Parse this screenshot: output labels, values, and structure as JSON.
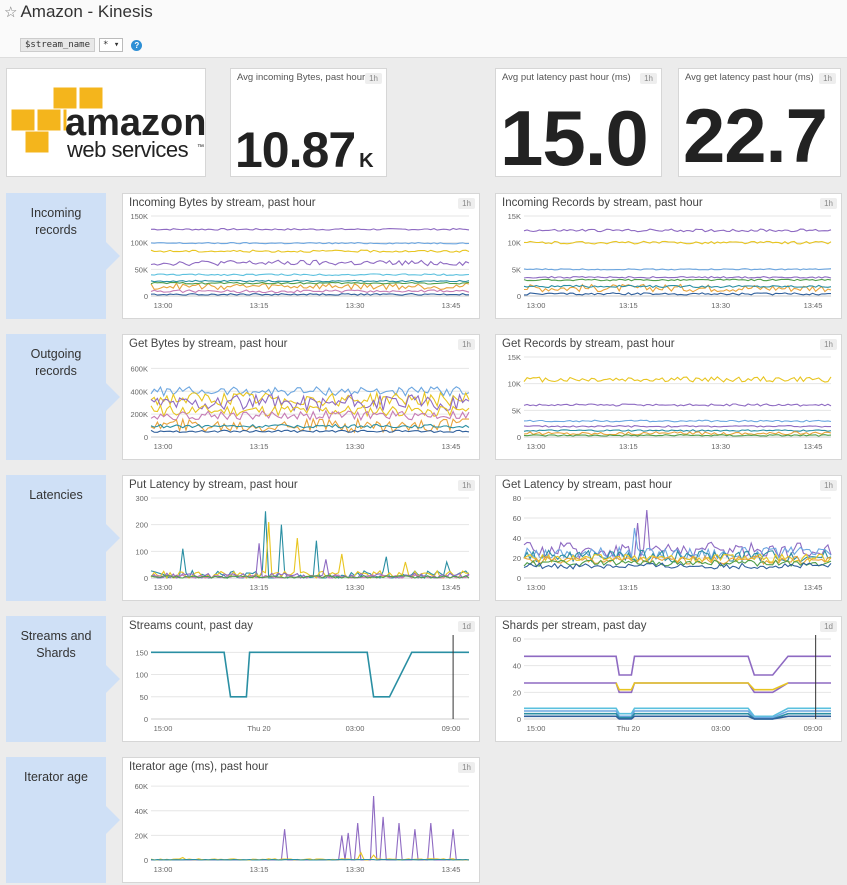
{
  "header": {
    "star_icon": "star-outline-icon",
    "title": "Amazon - Kinesis",
    "template_var": "$stream_name",
    "template_value": "* ▾",
    "help_icon": "help-circle-icon",
    "help_glyph": "?"
  },
  "logo": {
    "line1": "amazon",
    "line2": "web services",
    "tm": "™"
  },
  "query_values": [
    {
      "title": "Avg incoming Bytes, past hour",
      "badge": "1h",
      "value": "10.87",
      "unit": "K"
    },
    {
      "title": "Avg put latency past hour (ms)",
      "badge": "1h",
      "value": "15.0",
      "unit": ""
    },
    {
      "title": "Avg get latency past hour (ms)",
      "badge": "1h",
      "value": "22.7",
      "unit": ""
    }
  ],
  "sections": [
    {
      "label_lines": [
        "Incoming",
        "records"
      ]
    },
    {
      "label_lines": [
        "Outgoing",
        "records"
      ]
    },
    {
      "label_lines": [
        "Latencies"
      ]
    },
    {
      "label_lines": [
        "Streams and",
        "Shards"
      ]
    },
    {
      "label_lines": [
        "Iterator age"
      ]
    }
  ],
  "colors": {
    "purple": "#8e6ac2",
    "blue": "#6ca6e0",
    "yellow": "#e8c520",
    "teal": "#2a8fa3",
    "orange": "#e8a33a",
    "green": "#4f9e4a",
    "darkblue": "#2f5f9c",
    "pink": "#c57bb5",
    "cyan": "#5bc0de"
  },
  "chart_data": [
    {
      "id": "incoming-bytes",
      "type": "line",
      "title": "Incoming Bytes by stream, past hour",
      "badge": "1h",
      "x": [
        "13:00",
        "13:15",
        "13:30",
        "13:45"
      ],
      "yticks": [
        "0",
        "50K",
        "100K",
        "150K"
      ],
      "ylim": [
        0,
        150000
      ],
      "series": [
        {
          "color": "purple",
          "level": 125000,
          "noise": 1500
        },
        {
          "color": "blue",
          "level": 99000,
          "noise": 1200
        },
        {
          "color": "yellow",
          "level": 84000,
          "noise": 2000
        },
        {
          "color": "purple",
          "level": 62000,
          "noise": 5000
        },
        {
          "color": "cyan",
          "level": 40000,
          "noise": 1500
        },
        {
          "color": "teal",
          "level": 28000,
          "noise": 1500
        },
        {
          "color": "orange",
          "level": 18000,
          "noise": 6000
        },
        {
          "color": "green",
          "level": 24000,
          "noise": 1500
        },
        {
          "color": "pink",
          "level": 9000,
          "noise": 2500
        },
        {
          "color": "darkblue",
          "level": 3000,
          "noise": 1500
        }
      ]
    },
    {
      "id": "incoming-records",
      "type": "line",
      "title": "Incoming Records by stream, past hour",
      "badge": "1h",
      "x": [
        "13:00",
        "13:15",
        "13:30",
        "13:45"
      ],
      "yticks": [
        "0",
        "5K",
        "10K",
        "15K"
      ],
      "ylim": [
        0,
        15000
      ],
      "series": [
        {
          "color": "purple",
          "level": 12300,
          "noise": 250
        },
        {
          "color": "yellow",
          "level": 10000,
          "noise": 250
        },
        {
          "color": "blue",
          "level": 5000,
          "noise": 120
        },
        {
          "color": "purple",
          "level": 3500,
          "noise": 150
        },
        {
          "color": "orange",
          "level": 1500,
          "noise": 700
        },
        {
          "color": "teal",
          "level": 1800,
          "noise": 200
        },
        {
          "color": "green",
          "level": 3000,
          "noise": 150
        },
        {
          "color": "darkblue",
          "level": 400,
          "noise": 200
        }
      ]
    },
    {
      "id": "get-bytes",
      "type": "line",
      "title": "Get Bytes by stream, past hour",
      "badge": "1h",
      "x": [
        "13:00",
        "13:15",
        "13:30",
        "13:45"
      ],
      "yticks": [
        "0",
        "200K",
        "400K",
        "600K"
      ],
      "ylim": [
        0,
        700000
      ],
      "series": [
        {
          "color": "blue",
          "level": 400000,
          "noise": 40000
        },
        {
          "color": "yellow",
          "level": 330000,
          "noise": 60000
        },
        {
          "color": "purple",
          "level": 300000,
          "noise": 70000
        },
        {
          "color": "yellow",
          "level": 230000,
          "noise": 50000
        },
        {
          "color": "pink",
          "level": 190000,
          "noise": 40000
        },
        {
          "color": "orange",
          "level": 100000,
          "noise": 60000
        },
        {
          "color": "teal",
          "level": 95000,
          "noise": 15000
        },
        {
          "color": "darkblue",
          "level": 50000,
          "noise": 10000
        }
      ]
    },
    {
      "id": "get-records",
      "type": "line",
      "title": "Get Records by stream, past hour",
      "badge": "1h",
      "x": [
        "13:00",
        "13:15",
        "13:30",
        "13:45"
      ],
      "yticks": [
        "0",
        "5K",
        "10K",
        "15K"
      ],
      "ylim": [
        0,
        15000
      ],
      "series": [
        {
          "color": "yellow",
          "level": 10800,
          "noise": 500
        },
        {
          "color": "purple",
          "level": 6000,
          "noise": 200
        },
        {
          "color": "blue",
          "level": 3000,
          "noise": 150
        },
        {
          "color": "purple",
          "level": 2000,
          "noise": 150
        },
        {
          "color": "teal",
          "level": 1200,
          "noise": 150
        },
        {
          "color": "orange",
          "level": 700,
          "noise": 300
        },
        {
          "color": "green",
          "level": 300,
          "noise": 150
        }
      ]
    },
    {
      "id": "put-latency",
      "type": "line",
      "title": "Put Latency by stream, past hour",
      "badge": "1h",
      "x": [
        "13:00",
        "13:15",
        "13:30",
        "13:45"
      ],
      "yticks": [
        "0",
        "100",
        "200",
        "300"
      ],
      "ylim": [
        0,
        300
      ],
      "series": [
        {
          "color": "teal",
          "level": 10,
          "noise": 18,
          "spikes": [
            [
              10,
              110
            ],
            [
              36,
              250
            ],
            [
              41,
              200
            ],
            [
              52,
              140
            ],
            [
              74,
              80
            ],
            [
              93,
              60
            ]
          ]
        },
        {
          "color": "yellow",
          "level": 12,
          "noise": 15,
          "spikes": [
            [
              37,
              210
            ],
            [
              46,
              150
            ],
            [
              60,
              90
            ],
            [
              80,
              60
            ]
          ]
        },
        {
          "color": "purple",
          "level": 8,
          "noise": 10,
          "spikes": [
            [
              34,
              130
            ],
            [
              55,
              70
            ]
          ]
        },
        {
          "color": "pink",
          "level": 5,
          "noise": 6
        },
        {
          "color": "green",
          "level": 4,
          "noise": 5
        }
      ]
    },
    {
      "id": "get-latency",
      "type": "line",
      "title": "Get Latency by stream, past hour",
      "badge": "1h",
      "x": [
        "13:00",
        "13:15",
        "13:30",
        "13:45"
      ],
      "yticks": [
        "0",
        "20",
        "40",
        "60",
        "80"
      ],
      "ylim": [
        0,
        80
      ],
      "series": [
        {
          "color": "purple",
          "level": 28,
          "noise": 8,
          "spikes": [
            [
              40,
              68
            ],
            [
              37,
              55
            ]
          ]
        },
        {
          "color": "blue",
          "level": 25,
          "noise": 6,
          "spikes": [
            [
              36,
              50
            ]
          ]
        },
        {
          "color": "teal",
          "level": 22,
          "noise": 6
        },
        {
          "color": "yellow",
          "level": 20,
          "noise": 4
        },
        {
          "color": "orange",
          "level": 18,
          "noise": 4
        },
        {
          "color": "green",
          "level": 15,
          "noise": 3
        },
        {
          "color": "darkblue",
          "level": 12,
          "noise": 3
        }
      ]
    },
    {
      "id": "streams-count",
      "type": "line",
      "title": "Streams count, past day",
      "badge": "1d",
      "x": [
        "15:00",
        "Thu 20",
        "03:00",
        "09:00"
      ],
      "yticks": [
        "0",
        "50",
        "100",
        "150"
      ],
      "ylim": [
        0,
        180
      ],
      "series": [
        {
          "color": "teal",
          "points": [
            [
              0,
              150
            ],
            [
              0.23,
              150
            ],
            [
              0.25,
              50
            ],
            [
              0.3,
              50
            ],
            [
              0.31,
              150
            ],
            [
              0.68,
              150
            ],
            [
              0.7,
              50
            ],
            [
              0.75,
              50
            ],
            [
              0.82,
              150
            ],
            [
              1,
              150
            ]
          ]
        }
      ],
      "marker": 0.95
    },
    {
      "id": "shards-per-stream",
      "type": "line",
      "title": "Shards per stream, past day",
      "badge": "1d",
      "x": [
        "15:00",
        "Thu 20",
        "03:00",
        "09:00"
      ],
      "yticks": [
        "0",
        "20",
        "40",
        "60"
      ],
      "ylim": [
        0,
        60
      ],
      "series": [
        {
          "color": "purple",
          "points": [
            [
              0,
              47
            ],
            [
              0.3,
              47
            ],
            [
              0.31,
              33
            ],
            [
              0.35,
              33
            ],
            [
              0.36,
              47
            ],
            [
              0.73,
              47
            ],
            [
              0.75,
              33
            ],
            [
              0.81,
              33
            ],
            [
              0.86,
              47
            ],
            [
              1,
              47
            ]
          ]
        },
        {
          "color": "purple",
          "points": [
            [
              0,
              27
            ],
            [
              0.3,
              27
            ],
            [
              0.31,
              20
            ],
            [
              0.35,
              20
            ],
            [
              0.36,
              27
            ],
            [
              0.73,
              27
            ],
            [
              0.75,
              20
            ],
            [
              0.81,
              20
            ],
            [
              0.86,
              27
            ],
            [
              1,
              27
            ]
          ]
        },
        {
          "color": "yellow",
          "points": [
            [
              0.3,
              27
            ],
            [
              0.31,
              22
            ],
            [
              0.35,
              22
            ],
            [
              0.36,
              27
            ],
            [
              0.73,
              27
            ],
            [
              0.75,
              22
            ],
            [
              0.81,
              22
            ],
            [
              0.86,
              27
            ]
          ]
        },
        {
          "color": "cyan",
          "points": [
            [
              0,
              8
            ],
            [
              0.3,
              8
            ],
            [
              0.31,
              4
            ],
            [
              0.35,
              4
            ],
            [
              0.36,
              8
            ],
            [
              0.73,
              8
            ],
            [
              0.75,
              2
            ],
            [
              0.81,
              2
            ],
            [
              0.86,
              8
            ],
            [
              1,
              8
            ]
          ]
        },
        {
          "color": "blue",
          "points": [
            [
              0,
              6
            ],
            [
              0.3,
              6
            ],
            [
              0.31,
              2
            ],
            [
              0.35,
              2
            ],
            [
              0.36,
              6
            ],
            [
              0.73,
              6
            ],
            [
              0.75,
              1
            ],
            [
              0.81,
              1
            ],
            [
              0.86,
              6
            ],
            [
              1,
              6
            ]
          ]
        },
        {
          "color": "teal",
          "points": [
            [
              0,
              4
            ],
            [
              0.3,
              4
            ],
            [
              0.31,
              1
            ],
            [
              0.35,
              1
            ],
            [
              0.36,
              4
            ],
            [
              0.73,
              4
            ],
            [
              0.75,
              0
            ],
            [
              0.81,
              0
            ],
            [
              0.86,
              4
            ],
            [
              1,
              4
            ]
          ]
        },
        {
          "color": "darkblue",
          "points": [
            [
              0,
              2
            ],
            [
              0.3,
              2
            ],
            [
              0.31,
              0
            ],
            [
              0.35,
              0
            ],
            [
              0.36,
              2
            ],
            [
              0.73,
              2
            ],
            [
              0.75,
              0
            ],
            [
              0.81,
              0
            ],
            [
              0.86,
              2
            ],
            [
              1,
              2
            ]
          ]
        }
      ],
      "marker": 0.95
    },
    {
      "id": "iterator-age",
      "type": "line",
      "title": "Iterator age (ms), past hour",
      "badge": "1h",
      "x": [
        "13:00",
        "13:15",
        "13:30",
        "13:45"
      ],
      "yticks": [
        "0",
        "20K",
        "40K",
        "60K"
      ],
      "ylim": [
        0,
        65000
      ],
      "series": [
        {
          "color": "purple",
          "level": 0,
          "noise": 0,
          "spikes": [
            [
              42,
              25000
            ],
            [
              60,
              20000
            ],
            [
              62,
              22000
            ],
            [
              65,
              30000
            ],
            [
              70,
              52000
            ],
            [
              73,
              35000
            ],
            [
              78,
              30000
            ],
            [
              83,
              25000
            ],
            [
              88,
              30000
            ],
            [
              95,
              25000
            ]
          ]
        },
        {
          "color": "yellow",
          "level": 500,
          "noise": 500,
          "spikes": [
            [
              10,
              2000
            ],
            [
              66,
              6000
            ],
            [
              70,
              4000
            ]
          ]
        },
        {
          "color": "teal",
          "level": 200,
          "noise": 200
        }
      ]
    }
  ]
}
